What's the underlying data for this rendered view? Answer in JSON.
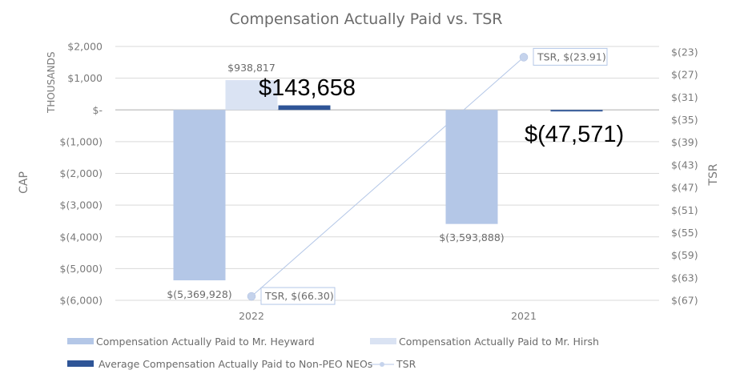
{
  "chart_data": {
    "type": "bar",
    "title": "Compensation Actually Paid vs. TSR",
    "categories": [
      "2022",
      "2021"
    ],
    "ylabel": "CAP",
    "ylabel_units": "THOUSANDS",
    "y2label": "TSR",
    "ylim": [
      -6000,
      2000
    ],
    "y_ticks": [
      2000,
      1000,
      0,
      -1000,
      -2000,
      -3000,
      -4000,
      -5000,
      -6000
    ],
    "y_tick_labels": [
      "$2,000",
      "$1,000",
      "$-",
      "$(1,000)",
      "$(2,000)",
      "$(3,000)",
      "$(4,000)",
      "$(5,000)",
      "$(6,000)"
    ],
    "y2lim": [
      -67,
      -23
    ],
    "y2_ticks": [
      -23,
      -27,
      -31,
      -35,
      -39,
      -43,
      -47,
      -51,
      -55,
      -59,
      -63,
      -67
    ],
    "y2_tick_labels": [
      "$(23)",
      "$(27)",
      "$(31)",
      "$(35)",
      "$(39)",
      "$(43)",
      "$(47)",
      "$(51)",
      "$(55)",
      "$(59)",
      "$(63)",
      "$(67)"
    ],
    "grid": true,
    "legend_position": "bottom",
    "series": [
      {
        "name": "Compensation Actually Paid to Mr. Heyward",
        "type": "bar",
        "color": "#b4c7e7",
        "values": [
          -5369.928,
          -3593.888
        ],
        "labels": [
          "$(5,369,928)",
          "$(3,593,888)"
        ]
      },
      {
        "name": "Compensation Actually Paid to Mr. Hirsh",
        "type": "bar",
        "color": "#dae3f3",
        "values": [
          938.817,
          null
        ],
        "labels": [
          "$938,817",
          null
        ]
      },
      {
        "name": "Average Compensation Actually Paid to Non-PEO NEOs",
        "type": "bar",
        "color": "#2f5597",
        "values": [
          143.658,
          -47.571
        ],
        "labels": [
          "$143,658",
          "$(47,571)"
        ]
      },
      {
        "name": "TSR",
        "type": "line",
        "axis": "secondary",
        "color": "#b4c7e7",
        "values": [
          -66.3,
          -23.91
        ],
        "labels": [
          "TSR,  $(66.30)",
          "TSR,  $(23.91)"
        ]
      }
    ]
  }
}
